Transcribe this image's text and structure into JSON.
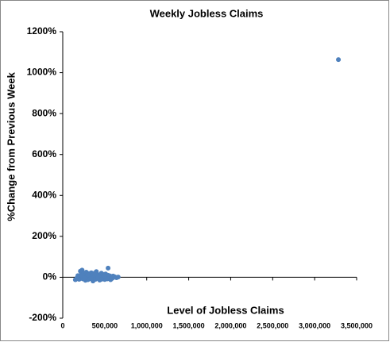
{
  "chart_data": {
    "type": "scatter",
    "title": "Weekly Jobless Claims",
    "x_label": "Level of Jobless Claims",
    "y_label": "%Change from Previous Week",
    "series": [
      {
        "color": "#4f81bd",
        "x": [
          150000,
          165000,
          180000,
          195000,
          210000,
          220000,
          230000,
          240000,
          250000,
          260000,
          270000,
          280000,
          290000,
          300000,
          310000,
          320000,
          330000,
          340000,
          350000,
          360000,
          370000,
          380000,
          390000,
          400000,
          410000,
          420000,
          430000,
          440000,
          450000,
          460000,
          470000,
          480000,
          490000,
          500000,
          510000,
          520000,
          530000,
          540000,
          550000,
          560000,
          570000,
          580000,
          590000,
          600000,
          620000,
          640000,
          660000,
          230000,
          260000,
          300000,
          340000,
          380000,
          420000,
          460000,
          500000,
          540000,
          3283000
        ],
        "values": [
          -12,
          -5,
          8,
          -10,
          30,
          15,
          35,
          -8,
          20,
          10,
          -15,
          25,
          5,
          -12,
          18,
          12,
          -6,
          22,
          8,
          -18,
          15,
          3,
          -10,
          28,
          6,
          -4,
          12,
          -14,
          9,
          20,
          -7,
          14,
          2,
          -11,
          16,
          5,
          -8,
          10,
          -3,
          7,
          -12,
          4,
          -5,
          6,
          2,
          -2,
          1,
          5,
          -3,
          12,
          -8,
          20,
          2,
          -10,
          8,
          45,
          1064
        ]
      }
    ],
    "xlim": [
      0,
      3500000
    ],
    "xticks": [
      0,
      {
        "value": 500000,
        "label": "500,000"
      },
      {
        "value": 1000000,
        "label": "1,000,000"
      },
      {
        "value": 1500000,
        "label": "1,500,000"
      },
      {
        "value": 2000000,
        "label": "2,000,000"
      },
      {
        "value": 2500000,
        "label": "2,500,000"
      },
      {
        "value": 3000000,
        "label": "3,000,000"
      },
      {
        "value": 3500000,
        "label": "3,500,000"
      }
    ],
    "ylim": [
      -200,
      1200
    ],
    "yticks": [
      {
        "value": -200,
        "label": "-200%"
      },
      {
        "value": 0,
        "label": "0%"
      },
      {
        "value": 200,
        "label": "200%"
      },
      {
        "value": 400,
        "label": "400%"
      },
      {
        "value": 600,
        "label": "600%"
      },
      {
        "value": 800,
        "label": "800%"
      },
      {
        "value": 1000,
        "label": "1000%"
      },
      {
        "value": 1200,
        "label": "1200%"
      }
    ]
  }
}
